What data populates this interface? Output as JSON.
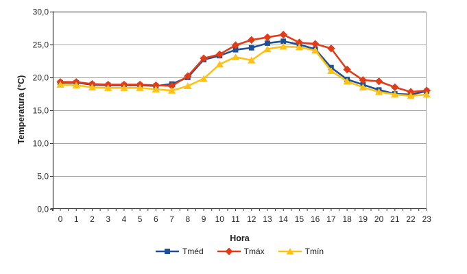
{
  "chart_data": {
    "type": "line",
    "title": "",
    "xlabel": "Hora",
    "ylabel": "Temperatura (°C)",
    "x": [
      0,
      1,
      2,
      3,
      4,
      5,
      6,
      7,
      8,
      9,
      10,
      11,
      12,
      13,
      14,
      15,
      16,
      17,
      18,
      19,
      20,
      21,
      22,
      23
    ],
    "x_tick_labels": [
      "0",
      "1",
      "2",
      "3",
      "4",
      "5",
      "6",
      "7",
      "8",
      "9",
      "10",
      "11",
      "12",
      "13",
      "14",
      "15",
      "16",
      "17",
      "18",
      "19",
      "20",
      "21",
      "22",
      "23"
    ],
    "ylim": [
      0,
      30
    ],
    "y_tick_step": 5,
    "y_tick_values": [
      0,
      5,
      10,
      15,
      20,
      25,
      30
    ],
    "y_tick_labels": [
      "0,0",
      "5,0",
      "10,0",
      "15,0",
      "20,0",
      "25,0",
      "30,0"
    ],
    "grid": "horizontal-only",
    "legend_position": "bottom",
    "series": [
      {
        "name": "Tméd",
        "marker": "square",
        "color": "#1F5096",
        "values": [
          19.2,
          19.2,
          18.9,
          18.8,
          18.8,
          18.8,
          18.7,
          19.0,
          20.0,
          22.7,
          23.3,
          24.2,
          24.5,
          25.2,
          25.5,
          25.0,
          24.3,
          21.5,
          19.7,
          18.9,
          18.1,
          17.5,
          17.4,
          17.9
        ]
      },
      {
        "name": "Tmáx",
        "marker": "diamond",
        "color": "#E13B17",
        "values": [
          19.3,
          19.3,
          19.0,
          18.9,
          18.9,
          18.9,
          18.8,
          18.7,
          20.2,
          22.9,
          23.5,
          24.9,
          25.7,
          26.1,
          26.5,
          25.3,
          25.1,
          24.4,
          21.2,
          19.6,
          19.4,
          18.5,
          17.8,
          18.0
        ]
      },
      {
        "name": "Tmín",
        "marker": "triangle",
        "color": "#FFC214",
        "values": [
          18.9,
          18.8,
          18.5,
          18.4,
          18.4,
          18.4,
          18.2,
          18.0,
          18.7,
          19.8,
          22.0,
          23.1,
          22.6,
          24.3,
          24.7,
          24.6,
          24.1,
          21.0,
          19.4,
          18.5,
          17.8,
          17.4,
          17.2,
          17.4
        ]
      }
    ]
  }
}
